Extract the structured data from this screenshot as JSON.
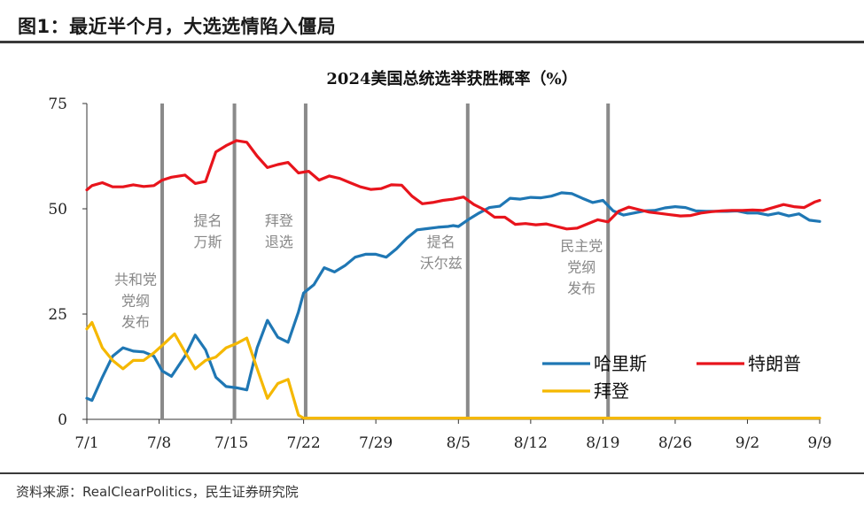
{
  "figure": {
    "title": "图1：最近半个月，大选选情陷入僵局",
    "source": "资料来源：RealClearPolitics，民生证券研究院"
  },
  "chart_data": {
    "type": "line",
    "title": "2024美国总统选举获胜概率（%）",
    "xlabel": "",
    "ylabel": "",
    "ylim": [
      0,
      75
    ],
    "yticks": [
      "0",
      "25",
      "50",
      "75"
    ],
    "xlim": [
      0,
      70
    ],
    "x_tick_labels": [
      {
        "x": 0,
        "label": "7/1"
      },
      {
        "x": 7,
        "label": "7/8"
      },
      {
        "x": 14,
        "label": "7/15"
      },
      {
        "x": 21,
        "label": "7/22"
      },
      {
        "x": 28,
        "label": "7/29"
      },
      {
        "x": 36,
        "label": "8/5"
      },
      {
        "x": 43,
        "label": "8/12"
      },
      {
        "x": 50,
        "label": "8/19"
      },
      {
        "x": 57,
        "label": "8/26"
      },
      {
        "x": 64,
        "label": "9/2"
      },
      {
        "x": 71,
        "label": "9/9"
      }
    ],
    "grid": false,
    "legend_position": "bottom-right",
    "series": [
      {
        "name": "哈里斯",
        "color": "#1f77b4",
        "points": [
          [
            0,
            5
          ],
          [
            0.5,
            4.5
          ],
          [
            1.5,
            10
          ],
          [
            2.5,
            15
          ],
          [
            3.5,
            17
          ],
          [
            4.5,
            16.2
          ],
          [
            5.5,
            16
          ],
          [
            6.5,
            15
          ],
          [
            7.3,
            11.5
          ],
          [
            8.2,
            10.2
          ],
          [
            9.5,
            15
          ],
          [
            10.5,
            20
          ],
          [
            11.5,
            16.5
          ],
          [
            12.5,
            10
          ],
          [
            13.5,
            7.8
          ],
          [
            14.5,
            7.5
          ],
          [
            15.5,
            7
          ],
          [
            16.5,
            17
          ],
          [
            17.5,
            23.5
          ],
          [
            18.5,
            19.5
          ],
          [
            19.5,
            18.3
          ],
          [
            20.5,
            25.5
          ],
          [
            21,
            30
          ],
          [
            22,
            32
          ],
          [
            23,
            36
          ],
          [
            24,
            35
          ],
          [
            25,
            36.5
          ],
          [
            26,
            38.5
          ],
          [
            27,
            39.2
          ],
          [
            28,
            39.2
          ],
          [
            29,
            38.5
          ],
          [
            30,
            40.5
          ],
          [
            31,
            43
          ],
          [
            32,
            45
          ],
          [
            33,
            45.3
          ],
          [
            34,
            45.6
          ],
          [
            35,
            45.8
          ],
          [
            35.5,
            46
          ],
          [
            36,
            45.8
          ],
          [
            37,
            47.5
          ],
          [
            38,
            49
          ],
          [
            39,
            50.3
          ],
          [
            40,
            50.6
          ],
          [
            41,
            52.5
          ],
          [
            42,
            52.3
          ],
          [
            43,
            52.7
          ],
          [
            44,
            52.6
          ],
          [
            45,
            53
          ],
          [
            46,
            53.8
          ],
          [
            47,
            53.6
          ],
          [
            48,
            52.5
          ],
          [
            49,
            51.5
          ],
          [
            50,
            52
          ],
          [
            51,
            49.5
          ],
          [
            52,
            48.5
          ],
          [
            53,
            49
          ],
          [
            54,
            49.5
          ],
          [
            55,
            49.6
          ],
          [
            56,
            50.2
          ],
          [
            57,
            50.5
          ],
          [
            58,
            50.3
          ],
          [
            59,
            49.5
          ],
          [
            60,
            49.4
          ],
          [
            61,
            49.4
          ],
          [
            62,
            49.4
          ],
          [
            63,
            49.5
          ],
          [
            64,
            49
          ],
          [
            65,
            49
          ],
          [
            66,
            48.5
          ],
          [
            67,
            49
          ],
          [
            68,
            48.3
          ],
          [
            69,
            48.8
          ],
          [
            70,
            47.3
          ],
          [
            71,
            47
          ]
        ]
      },
      {
        "name": "特朗普",
        "color": "#e8141c",
        "points": [
          [
            0,
            54.5
          ],
          [
            0.5,
            55.5
          ],
          [
            1.5,
            56.2
          ],
          [
            2.5,
            55.2
          ],
          [
            3.5,
            55.2
          ],
          [
            4.5,
            55.7
          ],
          [
            5.5,
            55.3
          ],
          [
            6.5,
            55.5
          ],
          [
            7.3,
            56.8
          ],
          [
            8.2,
            57.5
          ],
          [
            9.5,
            58
          ],
          [
            10.5,
            56
          ],
          [
            11.5,
            56.5
          ],
          [
            12.5,
            63.5
          ],
          [
            13.5,
            65
          ],
          [
            14.5,
            66.2
          ],
          [
            15.5,
            65.8
          ],
          [
            16.5,
            62.5
          ],
          [
            17.5,
            59.8
          ],
          [
            18.5,
            60.5
          ],
          [
            19.5,
            61
          ],
          [
            20.5,
            58.5
          ],
          [
            21.5,
            58.9
          ],
          [
            22.5,
            56.8
          ],
          [
            23.5,
            57.8
          ],
          [
            24.5,
            57.2
          ],
          [
            25.5,
            56.2
          ],
          [
            26.5,
            55.2
          ],
          [
            27.5,
            54.6
          ],
          [
            28.5,
            54.8
          ],
          [
            29.5,
            55.7
          ],
          [
            30.5,
            55.6
          ],
          [
            31.5,
            53
          ],
          [
            32.5,
            51.2
          ],
          [
            33.5,
            51.5
          ],
          [
            34.5,
            52
          ],
          [
            35.5,
            52.3
          ],
          [
            36.5,
            52.8
          ],
          [
            37.5,
            51
          ],
          [
            38.5,
            49.8
          ],
          [
            39.5,
            48
          ],
          [
            40.5,
            48
          ],
          [
            41.5,
            46.3
          ],
          [
            42.5,
            46.5
          ],
          [
            43.5,
            46.2
          ],
          [
            44.5,
            46.4
          ],
          [
            45.5,
            45.8
          ],
          [
            46.5,
            45.2
          ],
          [
            47.5,
            45.4
          ],
          [
            48.5,
            46.4
          ],
          [
            49.5,
            47.4
          ],
          [
            50.5,
            46.9
          ],
          [
            51.5,
            49.4
          ],
          [
            52.5,
            50.4
          ],
          [
            53.5,
            49.8
          ],
          [
            54.5,
            49.2
          ],
          [
            55.5,
            48.9
          ],
          [
            56.5,
            48.6
          ],
          [
            57.5,
            48.3
          ],
          [
            58.5,
            48.4
          ],
          [
            59.5,
            49
          ],
          [
            60.5,
            49.3
          ],
          [
            61.5,
            49.5
          ],
          [
            62.5,
            49.6
          ],
          [
            63.5,
            49.6
          ],
          [
            64.5,
            49.7
          ],
          [
            65.5,
            49.6
          ],
          [
            66.5,
            50.3
          ],
          [
            67.5,
            51
          ],
          [
            68.5,
            50.5
          ],
          [
            69.5,
            50.3
          ],
          [
            70.5,
            51.6
          ],
          [
            71,
            52
          ]
        ]
      },
      {
        "name": "拜登",
        "color": "#f5b800",
        "points": [
          [
            0,
            21.5
          ],
          [
            0.5,
            23
          ],
          [
            1.5,
            17
          ],
          [
            2.5,
            14
          ],
          [
            3.5,
            12
          ],
          [
            4.5,
            14
          ],
          [
            5.5,
            14
          ],
          [
            6.5,
            15.8
          ],
          [
            7.5,
            18
          ],
          [
            8.5,
            20.3
          ],
          [
            9.5,
            16
          ],
          [
            10.5,
            12
          ],
          [
            11.5,
            14
          ],
          [
            12.5,
            14.8
          ],
          [
            13.5,
            17
          ],
          [
            14.5,
            18
          ],
          [
            15.5,
            19.3
          ],
          [
            16.5,
            12
          ],
          [
            17.5,
            5
          ],
          [
            18.5,
            8.5
          ],
          [
            19.5,
            9.5
          ],
          [
            20.5,
            1
          ],
          [
            21,
            0.3
          ],
          [
            25,
            0.3
          ],
          [
            30,
            0.3
          ],
          [
            35,
            0.3
          ],
          [
            36,
            0.3
          ],
          [
            40,
            0.3
          ],
          [
            50,
            0.3
          ],
          [
            60,
            0.3
          ],
          [
            71,
            0.3
          ]
        ]
      }
    ],
    "event_lines": [
      {
        "x": 7.3,
        "label": [
          "共和党",
          "党纲",
          "发布"
        ],
        "label_y": 32
      },
      {
        "x": 14.3,
        "label": [
          "提名",
          "万斯"
        ],
        "label_y": 46
      },
      {
        "x": 21.2,
        "label": [
          "拜登",
          "退选"
        ],
        "label_y": 46
      },
      {
        "x": 36.9,
        "label": [
          "提名",
          "沃尔兹"
        ],
        "label_y": 41
      },
      {
        "x": 50.5,
        "label": [
          "民主党",
          "党纲",
          "发布"
        ],
        "label_y": 40
      }
    ]
  }
}
